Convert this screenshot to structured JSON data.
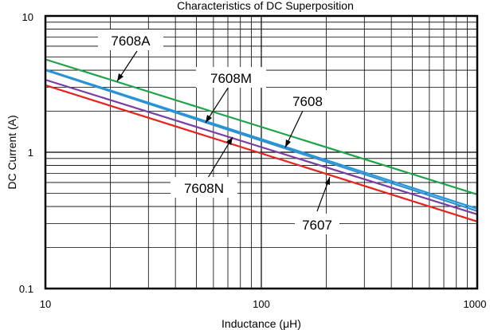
{
  "chart_data": {
    "type": "line",
    "title": "Characteristics of DC Superposition",
    "xlabel": "Inductance (μH)",
    "ylabel": "DC Current (A)",
    "x_scale": "log",
    "y_scale": "log",
    "xlim": [
      10,
      1000
    ],
    "ylim": [
      0.1,
      10
    ],
    "grid": true,
    "x_ticks": [
      "10",
      "100",
      "1000"
    ],
    "y_ticks": [
      "0.1",
      "1",
      "10"
    ],
    "series": [
      {
        "name": "7608A",
        "color": "#1fa34a",
        "x": [
          10,
          1000
        ],
        "y": [
          4.8,
          0.49
        ]
      },
      {
        "name": "7608M",
        "color": "#2b93d4",
        "x": [
          10,
          1000
        ],
        "y": [
          4.05,
          0.385
        ]
      },
      {
        "name": "7608",
        "color": "#2b93d4",
        "x": [
          10,
          1000
        ],
        "y": [
          4.0,
          0.37
        ]
      },
      {
        "name": "7608N",
        "color": "#7a3ea3",
        "x": [
          10,
          1000
        ],
        "y": [
          3.4,
          0.35
        ]
      },
      {
        "name": "7607",
        "color": "#e8231e",
        "x": [
          10,
          1000
        ],
        "y": [
          3.1,
          0.31
        ]
      }
    ]
  }
}
